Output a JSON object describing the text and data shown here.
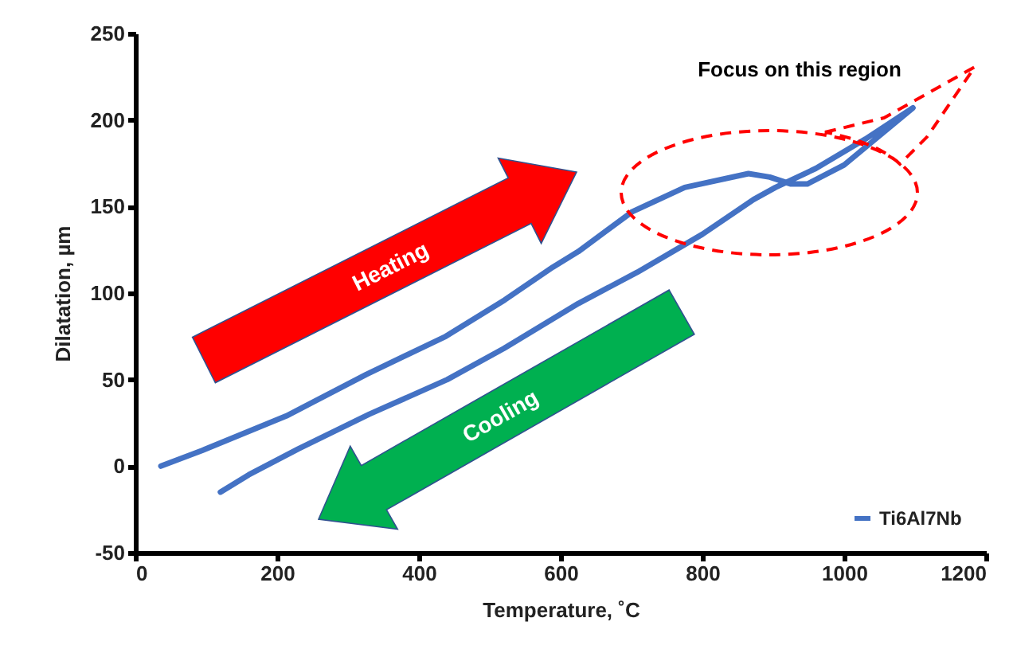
{
  "chart_data": {
    "type": "line",
    "xlabel": "Temperature, ˚C",
    "ylabel": "Dilatation, µm",
    "legend": "bottom right",
    "grid": false,
    "xlim": [
      0,
      1200
    ],
    "xticks": [
      0,
      200,
      400,
      600,
      800,
      1000,
      1200
    ],
    "ylim": [
      -50,
      250
    ],
    "yticks": [
      -50,
      0,
      50,
      100,
      150,
      200,
      250
    ],
    "annotations": [
      "Heating",
      "Cooling",
      "Focus on this region"
    ],
    "series": [
      {
        "name": "Ti6Al7Nb",
        "color": "#4472c4",
        "x": [
          36,
          94,
          213,
          326,
          438,
          521,
          589,
          625,
          701,
          775,
          865,
          895,
          925,
          948,
          1000,
          1097,
          1030,
          960,
          903,
          872,
          800,
          708,
          625,
          520,
          440,
          330,
          230,
          160,
          120
        ],
        "values": [
          0,
          9,
          29,
          53,
          75,
          96,
          115,
          124,
          147,
          161,
          169,
          167,
          163,
          163,
          174,
          207,
          189,
          172,
          161,
          154,
          134,
          112,
          94,
          68,
          50,
          30,
          10,
          -5,
          -15
        ]
      }
    ]
  }
}
